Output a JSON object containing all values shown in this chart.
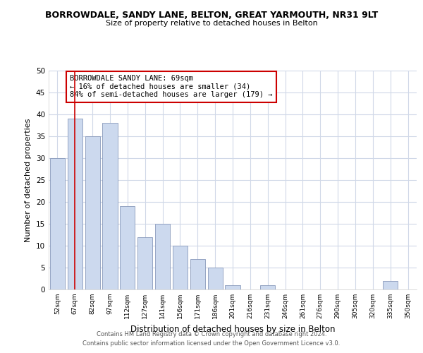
{
  "title": "BORROWDALE, SANDY LANE, BELTON, GREAT YARMOUTH, NR31 9LT",
  "subtitle": "Size of property relative to detached houses in Belton",
  "xlabel": "Distribution of detached houses by size in Belton",
  "ylabel": "Number of detached properties",
  "bar_labels": [
    "52sqm",
    "67sqm",
    "82sqm",
    "97sqm",
    "112sqm",
    "127sqm",
    "141sqm",
    "156sqm",
    "171sqm",
    "186sqm",
    "201sqm",
    "216sqm",
    "231sqm",
    "246sqm",
    "261sqm",
    "276sqm",
    "290sqm",
    "305sqm",
    "320sqm",
    "335sqm",
    "350sqm"
  ],
  "bar_heights": [
    30,
    39,
    35,
    38,
    19,
    12,
    15,
    10,
    7,
    5,
    1,
    0,
    1,
    0,
    0,
    0,
    0,
    0,
    0,
    2,
    0
  ],
  "bar_color": "#ccd9ee",
  "bar_edge_color": "#8899bb",
  "vline_x": 1,
  "vline_color": "#cc0000",
  "annotation_text": "BORROWDALE SANDY LANE: 69sqm\n← 16% of detached houses are smaller (34)\n84% of semi-detached houses are larger (179) →",
  "annotation_box_color": "#ffffff",
  "annotation_box_edge": "#cc0000",
  "ylim": [
    0,
    50
  ],
  "yticks": [
    0,
    5,
    10,
    15,
    20,
    25,
    30,
    35,
    40,
    45,
    50
  ],
  "footer_line1": "Contains HM Land Registry data © Crown copyright and database right 2024.",
  "footer_line2": "Contains public sector information licensed under the Open Government Licence v3.0.",
  "background_color": "#ffffff",
  "grid_color": "#d0d8e8"
}
